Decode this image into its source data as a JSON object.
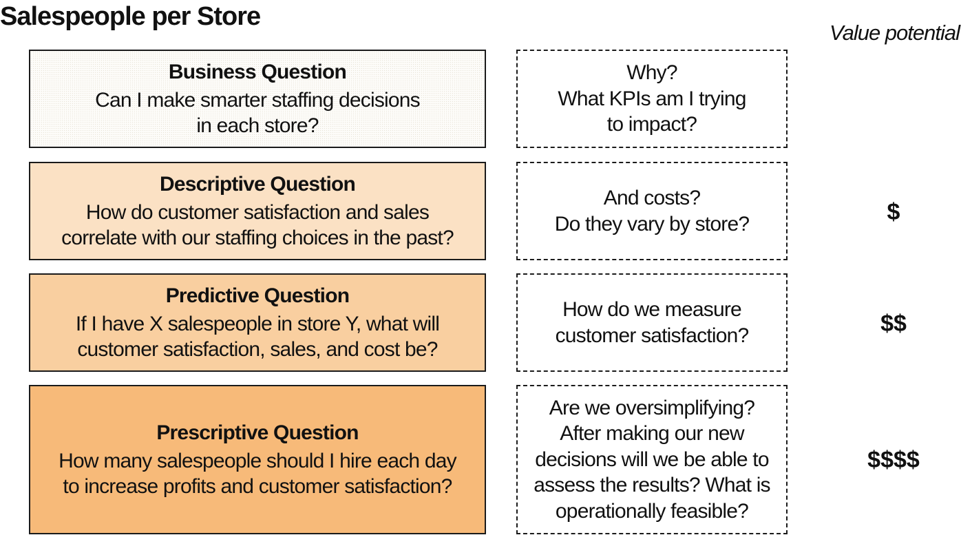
{
  "title": "Salespeople per Store",
  "value_header": "Value potential",
  "rows": [
    {
      "question_title": "Business Question",
      "question_text": "Can I make smarter staffing decisions\nin each store?",
      "note": "Why?\nWhat KPIs am I trying\nto impact?",
      "value": ""
    },
    {
      "question_title": "Descriptive Question",
      "question_text": "How do customer satisfaction and sales\ncorrelate with our staffing choices in the past?",
      "note": "And costs?\nDo they vary by store?",
      "value": "$"
    },
    {
      "question_title": "Predictive Question",
      "question_text": "If I have X salespeople in store Y, what will\ncustomer satisfaction, sales, and cost be?",
      "note": "How do we measure\ncustomer satisfaction?",
      "value": "$$"
    },
    {
      "question_title": "Prescriptive Question",
      "question_text": "How many salespeople should I hire each day\nto increase profits and customer satisfaction?",
      "note": "Are we oversimplifying?\nAfter making our new\ndecisions will we be able to\nassess the results? What is\noperationally feasible?",
      "value": "$$$$"
    }
  ],
  "colors": {
    "business_fill": "#fdfcf9",
    "descriptive_fill": "#fbe1c4",
    "predictive_fill": "#f9cfa0",
    "prescriptive_fill": "#f7ba79",
    "border": "#1a1a1a"
  }
}
